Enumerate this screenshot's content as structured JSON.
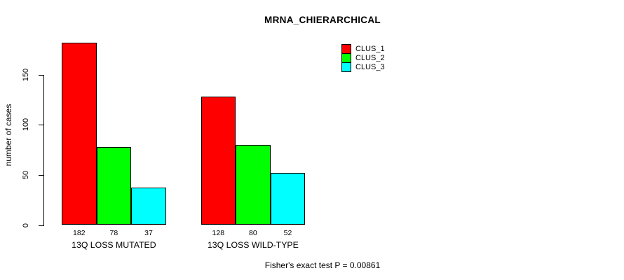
{
  "chart_data": {
    "type": "bar",
    "title": "MRNA_CHIERARCHICAL",
    "ylabel": "number of cases",
    "xlabel": "",
    "categories": [
      "13Q LOSS MUTATED",
      "13Q LOSS WILD-TYPE"
    ],
    "series": [
      {
        "name": "CLUS_1",
        "color": "#ff0000",
        "values": [
          182,
          128
        ]
      },
      {
        "name": "CLUS_2",
        "color": "#00ff00",
        "values": [
          78,
          80
        ]
      },
      {
        "name": "CLUS_3",
        "color": "#00ffff",
        "values": [
          37,
          52
        ]
      }
    ],
    "bar_value_labels": [
      [
        "182",
        "78",
        "37"
      ],
      [
        "128",
        "80",
        "52"
      ]
    ],
    "yticks": [
      "0",
      "50",
      "100",
      "150"
    ],
    "ytick_values": [
      0,
      50,
      100,
      150
    ],
    "ylim": [
      0,
      150
    ],
    "grid": false,
    "legend_position": "top-right",
    "bar_border_color": "#000000",
    "footer": "Fisher's exact test P = 0.00861"
  }
}
